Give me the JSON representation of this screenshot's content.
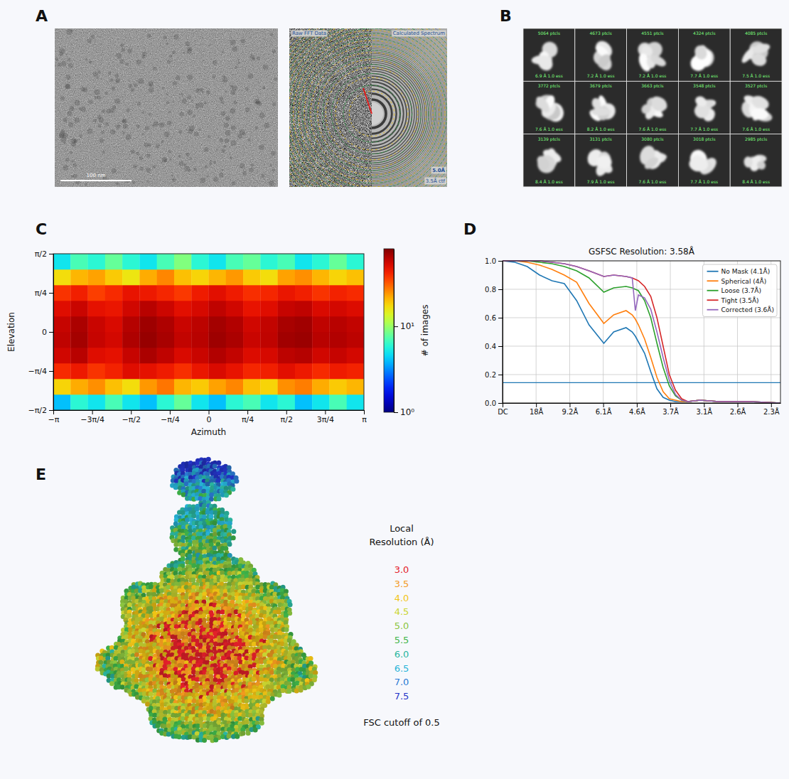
{
  "panel_a": {
    "letter": "A",
    "scale_bar_label": "100 nm",
    "ctf_labels": [
      "Raw FFT Data",
      "Calculated Spectrum",
      "5.0Å",
      "3.5Å ctf"
    ]
  },
  "panel_b": {
    "letter": "B",
    "classes": [
      {
        "particles": "5064 ptcls",
        "resolution": "6.9 Å 1.0 ess"
      },
      {
        "particles": "4673 ptcls",
        "resolution": "7.2 Å 1.0 ess"
      },
      {
        "particles": "4551 ptcls",
        "resolution": "7.2 Å 1.0 ess"
      },
      {
        "particles": "4324 ptcls",
        "resolution": "7.7 Å 1.0 ess"
      },
      {
        "particles": "4085 ptcls",
        "resolution": "7.5 Å 1.0 ess"
      },
      {
        "particles": "3772 ptcls",
        "resolution": "7.6 Å 1.0 ess"
      },
      {
        "particles": "3679 ptcls",
        "resolution": "8.2 Å 1.0 ess"
      },
      {
        "particles": "3663 ptcls",
        "resolution": "7.6 Å 1.0 ess"
      },
      {
        "particles": "3548 ptcls",
        "resolution": "7.7 Å 1.0 ess"
      },
      {
        "particles": "3527 ptcls",
        "resolution": "7.6 Å 1.0 ess"
      },
      {
        "particles": "3139 ptcls",
        "resolution": "8.4 Å 1.0 ess"
      },
      {
        "particles": "3131 ptcls",
        "resolution": "7.9 Å 1.0 ess"
      },
      {
        "particles": "3080 ptcls",
        "resolution": "7.6 Å 1.0 ess"
      },
      {
        "particles": "3018 ptcls",
        "resolution": "7.7 Å 1.0 ess"
      },
      {
        "particles": "2985 ptcls",
        "resolution": "8.4 Å 1.0 ess"
      }
    ]
  },
  "chart_data": [
    {
      "panel": "C",
      "type": "heatmap",
      "x_label": "Azimuth",
      "y_label": "Elevation",
      "xlim": [
        -3.1416,
        3.1416
      ],
      "ylim": [
        -1.5708,
        1.5708
      ],
      "xticks": [
        {
          "value": -3.1416,
          "label": "−π"
        },
        {
          "value": -2.3562,
          "label": "−3π/4"
        },
        {
          "value": -1.5708,
          "label": "−π/2"
        },
        {
          "value": -0.7854,
          "label": "−π/4"
        },
        0,
        {
          "value": 0.7854,
          "label": "π/4"
        },
        {
          "value": 1.5708,
          "label": "π/2"
        },
        {
          "value": 2.3562,
          "label": "3π/4"
        },
        {
          "value": 3.1416,
          "label": "π"
        }
      ],
      "yticks": [
        {
          "value": -1.5708,
          "label": "−π/2"
        },
        {
          "value": -0.7854,
          "label": "−π/4"
        },
        0,
        {
          "value": 0.7854,
          "label": "π/4"
        },
        {
          "value": 1.5708,
          "label": "π/2"
        }
      ],
      "x_bins": [
        -3.1416,
        -2.7925,
        -2.4435,
        -2.0944,
        -1.7453,
        -1.3963,
        -1.0472,
        -0.6981,
        -0.3491,
        0,
        0.3491,
        0.6981,
        1.0472,
        1.3963,
        1.7453,
        2.0944,
        2.4435,
        2.7925,
        3.1416
      ],
      "y_bins": [
        -1.5708,
        -1.2566,
        -0.9425,
        -0.6283,
        -0.3142,
        0,
        0.3142,
        0.6283,
        0.9425,
        1.2566,
        1.5708
      ],
      "counts": [
        [
          4,
          6,
          5,
          7,
          5,
          4,
          6,
          8,
          5,
          4,
          6,
          7,
          5,
          6,
          4,
          5,
          7,
          5
        ],
        [
          18,
          22,
          25,
          20,
          17,
          24,
          28,
          21,
          19,
          23,
          26,
          20,
          18,
          25,
          27,
          22,
          19,
          21
        ],
        [
          40,
          45,
          38,
          42,
          50,
          48,
          44,
          39,
          46,
          52,
          47,
          41,
          43,
          49,
          45,
          40,
          44,
          42
        ],
        [
          55,
          62,
          50,
          48,
          58,
          66,
          60,
          52,
          57,
          64,
          59,
          51,
          53,
          61,
          63,
          55,
          58,
          54
        ],
        [
          60,
          68,
          58,
          54,
          65,
          72,
          67,
          59,
          62,
          70,
          66,
          57,
          60,
          69,
          71,
          62,
          64,
          61
        ],
        [
          58,
          66,
          57,
          52,
          63,
          70,
          65,
          57,
          61,
          68,
          64,
          55,
          59,
          67,
          69,
          60,
          62,
          59
        ],
        [
          50,
          57,
          48,
          46,
          55,
          62,
          56,
          49,
          53,
          60,
          55,
          47,
          50,
          58,
          60,
          52,
          54,
          51
        ],
        [
          38,
          43,
          36,
          40,
          47,
          45,
          41,
          37,
          44,
          49,
          44,
          39,
          41,
          46,
          43,
          38,
          42,
          40
        ],
        [
          17,
          21,
          23,
          19,
          16,
          22,
          26,
          20,
          18,
          21,
          24,
          19,
          17,
          23,
          25,
          21,
          18,
          20
        ],
        [
          5,
          7,
          6,
          8,
          6,
          5,
          7,
          9,
          6,
          5,
          7,
          8,
          6,
          7,
          5,
          6,
          8,
          6
        ]
      ],
      "colorbar": {
        "label": "# of images",
        "log": true,
        "range": [
          1,
          80
        ],
        "ticks": [
          {
            "value": 1,
            "label": "10⁰"
          },
          {
            "value": 10,
            "label": "10¹"
          }
        ]
      }
    },
    {
      "panel": "D",
      "type": "line",
      "title": "GSFSC Resolution: 3.58Å",
      "x": [
        0,
        0.02,
        0.04,
        0.06,
        0.08,
        0.1,
        0.12,
        0.14,
        0.164,
        0.18,
        0.2,
        0.21,
        0.215,
        0.22,
        0.23,
        0.24,
        0.25,
        0.26,
        0.27,
        0.28,
        0.29,
        0.3,
        0.32,
        0.35,
        0.4,
        0.45
      ],
      "xlim": [
        0,
        0.45
      ],
      "xticks": [
        {
          "value": 0,
          "label": "DC"
        },
        {
          "value": 0.0543,
          "label": "18Å"
        },
        {
          "value": 0.1087,
          "label": "9.2Å"
        },
        {
          "value": 0.163,
          "label": "6.1Å"
        },
        {
          "value": 0.2174,
          "label": "4.6Å"
        },
        {
          "value": 0.2717,
          "label": "3.7Å"
        },
        {
          "value": 0.3261,
          "label": "3.1Å"
        },
        {
          "value": 0.3804,
          "label": "2.6Å"
        },
        {
          "value": 0.4348,
          "label": "2.3Å"
        }
      ],
      "ylim": [
        0,
        1
      ],
      "yticks": [
        {
          "value": 0,
          "label": "0.0"
        },
        {
          "value": 0.2,
          "label": "0.2"
        },
        {
          "value": 0.4,
          "label": "0.4"
        },
        {
          "value": 0.6,
          "label": "0.6"
        },
        {
          "value": 0.8,
          "label": "0.8"
        },
        {
          "value": 1,
          "label": "1.0"
        }
      ],
      "grid": true,
      "legend": "upper right",
      "threshold": {
        "value": 0.143,
        "color": "#1f77b4"
      },
      "series": [
        {
          "name": "No Mask (4.1Å)",
          "color": "#1f77b4",
          "values": [
            1,
            0.99,
            0.96,
            0.9,
            0.86,
            0.84,
            0.72,
            0.55,
            0.42,
            0.5,
            0.53,
            0.5,
            0.47,
            0.43,
            0.35,
            0.22,
            0.1,
            0.04,
            0.02,
            0.01,
            0.01,
            0.01,
            0.02,
            0.01,
            0.01,
            0
          ]
        },
        {
          "name": "Spherical (4Å)",
          "color": "#ff7f0e",
          "values": [
            1,
            1,
            0.99,
            0.97,
            0.94,
            0.9,
            0.85,
            0.7,
            0.56,
            0.62,
            0.65,
            0.62,
            0.59,
            0.55,
            0.45,
            0.32,
            0.18,
            0.08,
            0.03,
            0.02,
            0.01,
            0.01,
            0.02,
            0.01,
            0.01,
            0
          ]
        },
        {
          "name": "Loose (3.7Å)",
          "color": "#2ca02c",
          "values": [
            1,
            1,
            1,
            0.99,
            0.98,
            0.96,
            0.93,
            0.88,
            0.78,
            0.81,
            0.82,
            0.81,
            0.8,
            0.79,
            0.72,
            0.6,
            0.42,
            0.25,
            0.12,
            0.05,
            0.02,
            0.01,
            0.02,
            0.01,
            0.01,
            0
          ]
        },
        {
          "name": "Tight (3.5Å)",
          "color": "#d62728",
          "values": [
            1,
            1,
            1,
            1,
            0.99,
            0.98,
            0.96,
            0.93,
            0.89,
            0.9,
            0.89,
            0.88,
            0.87,
            0.86,
            0.82,
            0.75,
            0.6,
            0.4,
            0.2,
            0.09,
            0.03,
            0.01,
            0.02,
            0.01,
            0.01,
            0
          ]
        },
        {
          "name": "Corrected (3.6Å)",
          "color": "#9467bd",
          "values": [
            1,
            1,
            1,
            1,
            0.99,
            0.98,
            0.96,
            0.93,
            0.89,
            0.9,
            0.89,
            0.88,
            0.65,
            0.76,
            0.74,
            0.66,
            0.5,
            0.32,
            0.16,
            0.06,
            0.02,
            0.01,
            0.02,
            0.01,
            0.01,
            0
          ]
        }
      ]
    }
  ],
  "panel_e": {
    "letter": "E",
    "legend_title": "Local Resolution (Å)",
    "levels": [
      {
        "value": 3,
        "label": "3.0",
        "color": "#e4202a"
      },
      {
        "value": 3.5,
        "label": "3.5",
        "color": "#f39a1f"
      },
      {
        "value": 4,
        "label": "4.0",
        "color": "#f2c515"
      },
      {
        "value": 4.5,
        "label": "4.5",
        "color": "#c9d531"
      },
      {
        "value": 5,
        "label": "5.0",
        "color": "#8bc53f"
      },
      {
        "value": 5.5,
        "label": "5.5",
        "color": "#3fb54a"
      },
      {
        "value": 6,
        "label": "6.0",
        "color": "#2bb6a0"
      },
      {
        "value": 6.5,
        "label": "6.5",
        "color": "#27b4d8"
      },
      {
        "value": 7,
        "label": "7.0",
        "color": "#2a7bd4"
      },
      {
        "value": 7.5,
        "label": "7.5",
        "color": "#2434c8"
      }
    ],
    "footnote": "FSC cutoff of 0.5"
  }
}
